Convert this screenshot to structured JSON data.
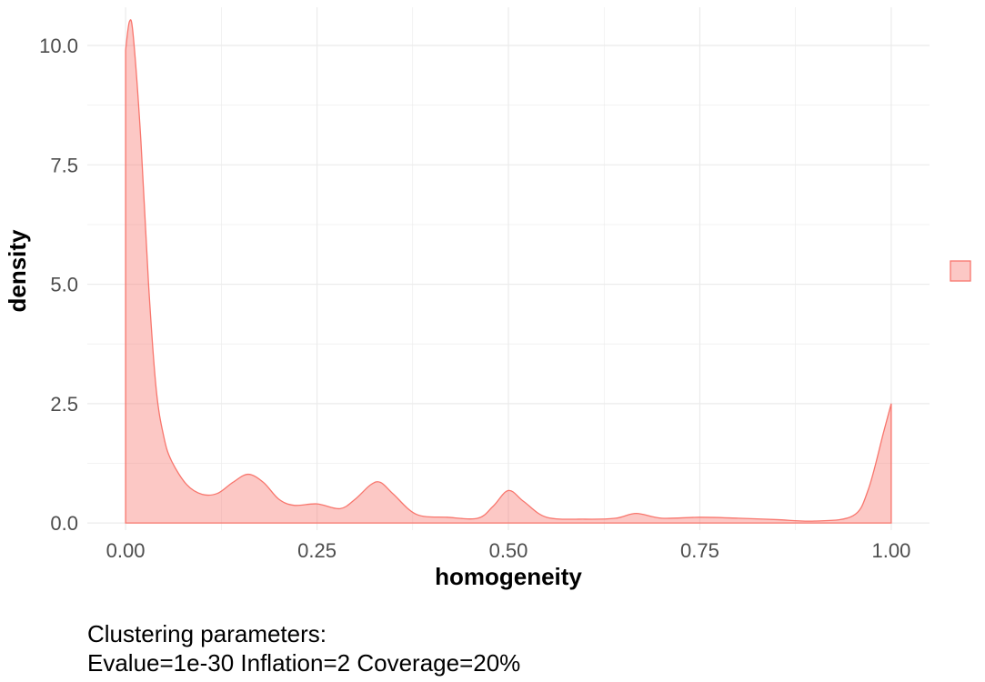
{
  "chart_data": {
    "type": "area",
    "title": "",
    "xlabel": "homogeneity",
    "ylabel": "density",
    "xlim": [
      -0.05,
      1.05
    ],
    "ylim": [
      -0.15,
      10.8
    ],
    "x_ticks": [
      0.0,
      0.25,
      0.5,
      0.75,
      1.0
    ],
    "x_tick_labels": [
      "0.00",
      "0.25",
      "0.50",
      "0.75",
      "1.00"
    ],
    "y_ticks": [
      0.0,
      2.5,
      5.0,
      7.5,
      10.0
    ],
    "y_tick_labels": [
      "0.0",
      "2.5",
      "5.0",
      "7.5",
      "10.0"
    ],
    "grid": true,
    "legend_position": "right",
    "legend_entries": [
      ""
    ],
    "series": [
      {
        "x": [
          0.0,
          0.005,
          0.01,
          0.02,
          0.03,
          0.04,
          0.05,
          0.06,
          0.08,
          0.1,
          0.12,
          0.14,
          0.16,
          0.18,
          0.2,
          0.22,
          0.25,
          0.28,
          0.3,
          0.32,
          0.333,
          0.35,
          0.38,
          0.42,
          0.46,
          0.48,
          0.5,
          0.52,
          0.55,
          0.6,
          0.64,
          0.667,
          0.7,
          0.75,
          0.8,
          0.85,
          0.9,
          0.95,
          0.97,
          0.99,
          1.0
        ],
        "y": [
          9.9,
          10.5,
          10.2,
          8.0,
          5.0,
          2.8,
          1.8,
          1.3,
          0.8,
          0.6,
          0.62,
          0.85,
          1.02,
          0.85,
          0.5,
          0.37,
          0.4,
          0.3,
          0.5,
          0.8,
          0.85,
          0.6,
          0.18,
          0.12,
          0.1,
          0.35,
          0.68,
          0.45,
          0.12,
          0.08,
          0.1,
          0.2,
          0.1,
          0.12,
          0.1,
          0.07,
          0.04,
          0.15,
          0.7,
          1.9,
          2.5
        ]
      }
    ],
    "fill_color": "#F8766D",
    "fill_opacity": 0.4,
    "line_color": "#F8766D",
    "grid_color": "#ebebeb"
  },
  "caption": {
    "line1": "Clustering parameters:",
    "line2": "Evalue=1e-30 Inflation=2 Coverage=20%"
  }
}
